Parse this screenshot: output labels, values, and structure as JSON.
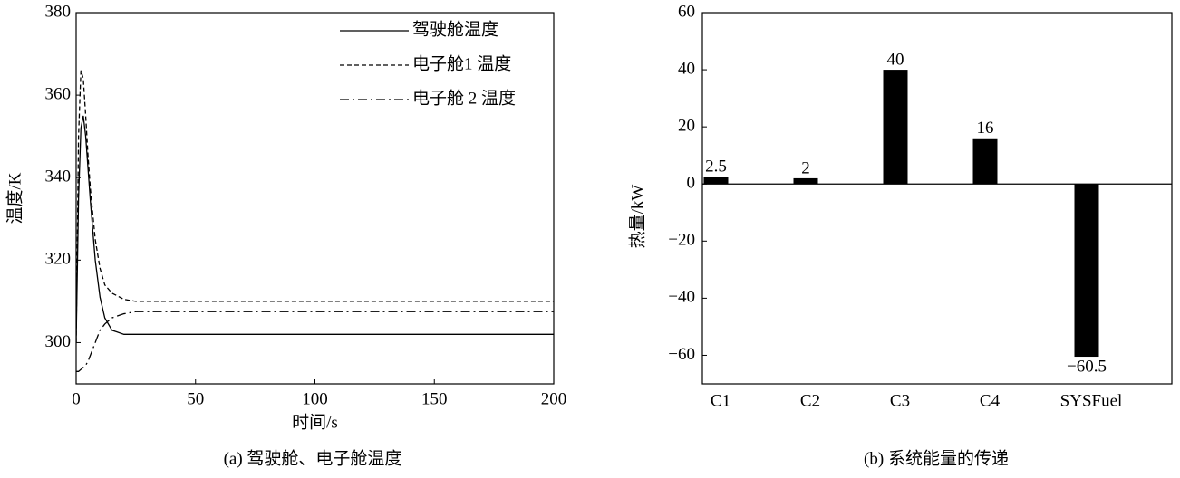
{
  "chart_data": [
    {
      "type": "line",
      "caption": "(a) 驾驶舱、电子舱温度",
      "xlabel": "时间/s",
      "ylabel": "温度/K",
      "x": [
        0,
        1,
        2,
        3,
        4,
        5,
        6,
        8,
        10,
        12,
        15,
        20,
        25,
        30,
        50,
        100,
        150,
        200
      ],
      "series": [
        {
          "name": "驾驶舱温度",
          "color": "#000000",
          "style": "solid",
          "values": [
            300,
            335,
            352,
            355,
            350,
            342,
            334,
            320,
            311,
            306,
            303,
            302,
            302,
            302,
            302,
            302,
            302,
            302
          ]
        },
        {
          "name": "电子舱1 温度",
          "color": "#000000",
          "style": "dashed",
          "values": [
            300,
            350,
            366,
            364,
            355,
            345,
            337,
            325,
            318,
            314,
            312,
            310.5,
            310,
            310,
            310,
            310,
            310,
            310
          ]
        },
        {
          "name": "电子舱 2 温度",
          "color": "#000000",
          "style": "dashdot",
          "values": [
            293,
            293,
            293.5,
            294,
            294.5,
            295.5,
            297,
            300,
            303,
            304.5,
            306,
            307,
            307.5,
            307.5,
            307.5,
            307.5,
            307.5,
            307.5
          ]
        }
      ],
      "xlim": [
        0,
        200
      ],
      "xticks": [
        0,
        50,
        100,
        150,
        200
      ],
      "ylim": [
        290,
        380
      ],
      "yticks": [
        300,
        320,
        340,
        360,
        380
      ],
      "legend": "upper right"
    },
    {
      "type": "bar",
      "caption": "(b) 系统能量的传递",
      "ylabel": "热量/kW",
      "categories": [
        "C1",
        "C2",
        "C3",
        "C4",
        "SYSFuel"
      ],
      "values": [
        2.5,
        2,
        40,
        16,
        -60.5
      ],
      "value_labels": [
        "2.5",
        "2",
        "40",
        "16",
        "−60.5"
      ],
      "color": "#000000",
      "ylim": [
        -70,
        60
      ],
      "yticks": [
        {
          "value": -60,
          "label": "−60"
        },
        {
          "value": -40,
          "label": "−40"
        },
        {
          "value": -20,
          "label": "−20"
        },
        0,
        20,
        40,
        60
      ]
    }
  ]
}
